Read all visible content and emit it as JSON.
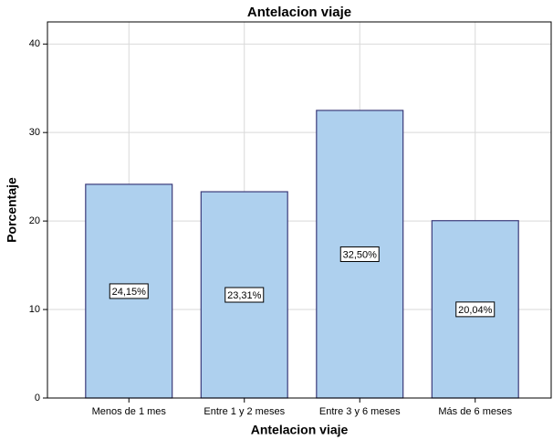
{
  "chart_data": {
    "type": "bar",
    "title": "Antelacion viaje",
    "x_label": "Antelacion viaje",
    "y_label": "Porcentaje",
    "categories": [
      "Menos de 1 mes",
      "Entre 1 y 2 meses",
      "Entre 3 y 6 meses",
      "Más de 6 meses"
    ],
    "values": [
      24.15,
      23.31,
      32.5,
      20.04
    ],
    "value_labels": [
      "24,15%",
      "23,31%",
      "32,50%",
      "20,04%"
    ],
    "color": "#aed0ee",
    "edge_color": "#3b3b7a",
    "ylim": [
      0,
      42.5
    ],
    "yticks": [
      0,
      10,
      20,
      30,
      40
    ],
    "grid": true
  }
}
